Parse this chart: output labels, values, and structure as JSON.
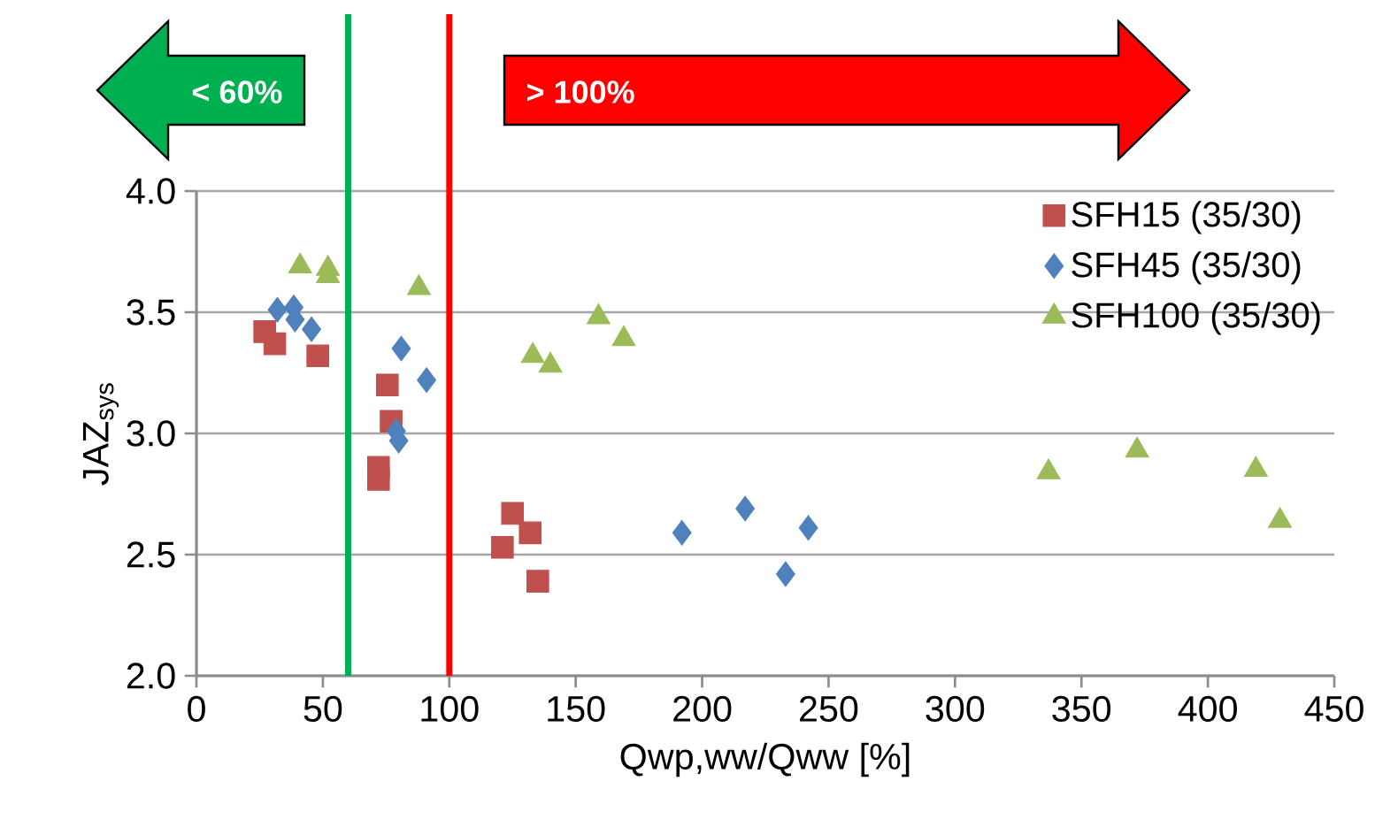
{
  "chart_data": {
    "type": "scatter",
    "xlabel": "Qwp,ww/Qww [%]",
    "ylabel": "JAZ$_{sys}$",
    "xlim": [
      0,
      450
    ],
    "xticks": [
      0,
      50,
      100,
      150,
      200,
      250,
      300,
      350,
      400,
      450
    ],
    "ylim": [
      2,
      4
    ],
    "yticks": [
      {
        "value": 2,
        "label": "2.0"
      },
      {
        "value": 2.5,
        "label": "2.5"
      },
      {
        "value": 3,
        "label": "3.0"
      },
      {
        "value": 3.5,
        "label": "3.5"
      },
      {
        "value": 4,
        "label": "4.0"
      }
    ],
    "grid": "y",
    "legend": "top right",
    "series": [
      {
        "name": "SFH15 (35/30)",
        "color": "#c0504d",
        "marker": "square",
        "x": [
          27,
          31,
          48,
          75.5,
          77,
          72,
          72,
          125,
          132,
          121,
          135
        ],
        "values": [
          3.42,
          3.37,
          3.32,
          3.2,
          3.05,
          2.86,
          2.81,
          2.67,
          2.59,
          2.53,
          2.39
        ]
      },
      {
        "name": "SFH45 (35/30)",
        "color": "#4f81bd",
        "marker": "diamond",
        "x": [
          32,
          38.5,
          39,
          45.5,
          81,
          91,
          79,
          80,
          192,
          217,
          242,
          233
        ],
        "values": [
          3.51,
          3.52,
          3.47,
          3.43,
          3.35,
          3.22,
          3.01,
          2.97,
          2.59,
          2.69,
          2.61,
          2.42
        ]
      },
      {
        "name": "SFH100 (35/30)",
        "color": "#9bbb59",
        "marker": "triangle",
        "x": [
          41,
          52,
          52,
          88,
          159,
          169,
          133,
          140,
          337,
          372,
          419,
          428.5
        ],
        "values": [
          3.69,
          3.68,
          3.65,
          3.6,
          3.48,
          3.39,
          3.32,
          3.28,
          2.84,
          2.93,
          2.85,
          2.64
        ]
      }
    ],
    "ref_lines": [
      {
        "axis": "x",
        "value": 60,
        "label": "< 60%",
        "color": "#00b050"
      },
      {
        "axis": "x",
        "value": 100,
        "label": "> 100%",
        "color": "#ff0000"
      }
    ]
  }
}
